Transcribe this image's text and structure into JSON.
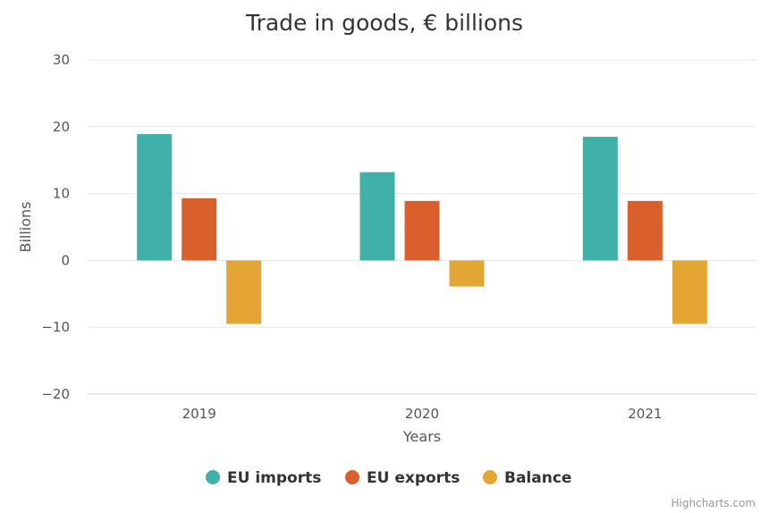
{
  "chart_data": {
    "type": "bar",
    "title": "Trade in goods, € billions",
    "xlabel": "Years",
    "ylabel": "Billions",
    "categories": [
      "2019",
      "2020",
      "2021"
    ],
    "ylim": [
      -20,
      30
    ],
    "yticks": [
      30,
      20,
      10,
      0,
      -10,
      -20
    ],
    "ytick_labels": [
      "30",
      "20",
      "10",
      "0",
      "−10",
      "−20"
    ],
    "grid": true,
    "legend_position": "bottom-center",
    "series": [
      {
        "name": "EU imports",
        "color": "#3fb1a8",
        "values": [
          18.9,
          13.2,
          18.5
        ]
      },
      {
        "name": "EU exports",
        "color": "#d9602c",
        "values": [
          9.3,
          8.9,
          8.9
        ]
      },
      {
        "name": "Balance",
        "color": "#e4a632",
        "values": [
          -9.5,
          -3.9,
          -9.5
        ]
      }
    ]
  },
  "credits": "Highcharts.com"
}
